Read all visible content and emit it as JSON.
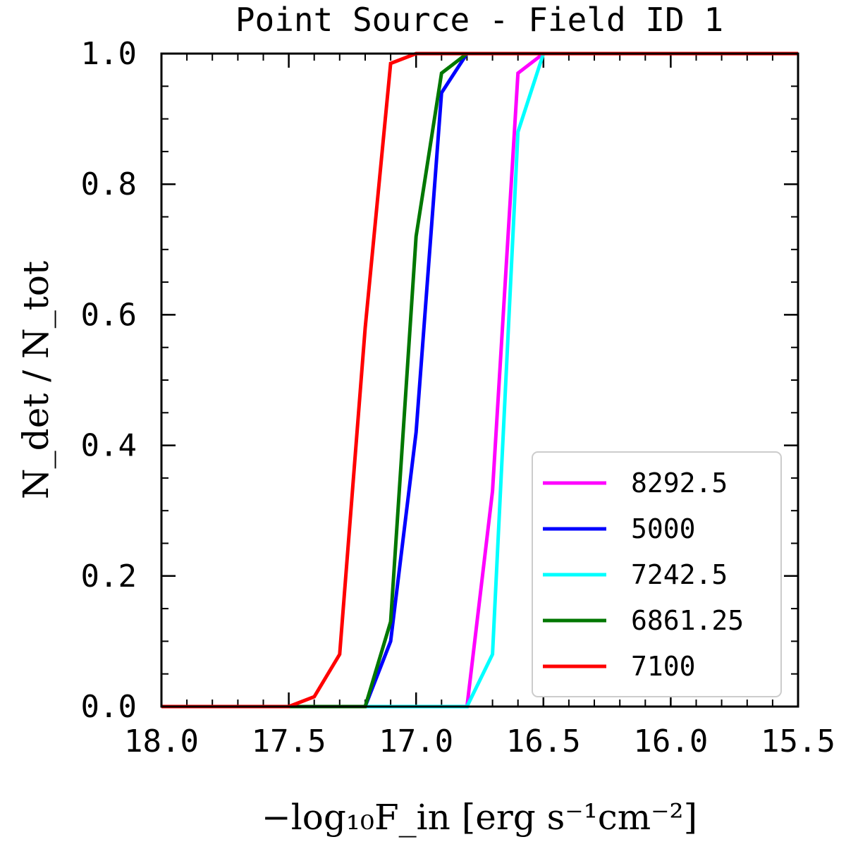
{
  "chart_data": {
    "type": "line",
    "title": "Point Source - Field ID 1",
    "xlabel": "−log₁₀F_in [erg s⁻¹cm⁻²]",
    "ylabel": "N_det / N_tot",
    "xlim": [
      18.0,
      15.5
    ],
    "ylim": [
      0.0,
      1.0
    ],
    "x_ticks": [
      "18.0",
      "17.5",
      "17.0",
      "16.5",
      "16.0",
      "15.5"
    ],
    "y_ticks": [
      "0.0",
      "0.2",
      "0.4",
      "0.6",
      "0.8",
      "1.0"
    ],
    "legend_position": "lower-right",
    "series": [
      {
        "name": "8292.5",
        "color": "#ff00ff",
        "x": [
          18.0,
          17.5,
          17.2,
          17.0,
          16.8,
          16.7,
          16.6,
          16.5,
          15.5
        ],
        "y": [
          0.0,
          0.0,
          0.0,
          0.0,
          0.0,
          0.33,
          0.97,
          1.0,
          1.0
        ]
      },
      {
        "name": "5000",
        "color": "#0000ff",
        "x": [
          18.0,
          17.5,
          17.2,
          17.1,
          17.0,
          16.9,
          16.8,
          15.5
        ],
        "y": [
          0.0,
          0.0,
          0.0,
          0.1,
          0.42,
          0.94,
          1.0,
          1.0
        ]
      },
      {
        "name": "7242.5",
        "color": "#00ffff",
        "x": [
          18.0,
          17.5,
          17.2,
          16.8,
          16.7,
          16.6,
          16.5,
          15.5
        ],
        "y": [
          0.0,
          0.0,
          0.0,
          0.0,
          0.08,
          0.88,
          1.0,
          1.0
        ]
      },
      {
        "name": "6861.25",
        "color": "#007700",
        "x": [
          18.0,
          17.5,
          17.2,
          17.1,
          17.0,
          16.9,
          16.8,
          15.5
        ],
        "y": [
          0.0,
          0.0,
          0.0,
          0.13,
          0.72,
          0.97,
          1.0,
          1.0
        ]
      },
      {
        "name": "7100",
        "color": "#ff0000",
        "x": [
          18.0,
          17.5,
          17.4,
          17.3,
          17.2,
          17.1,
          17.0,
          16.8,
          15.5
        ],
        "y": [
          0.0,
          0.0,
          0.015,
          0.08,
          0.58,
          0.985,
          1.0,
          1.0,
          1.0
        ]
      }
    ]
  }
}
